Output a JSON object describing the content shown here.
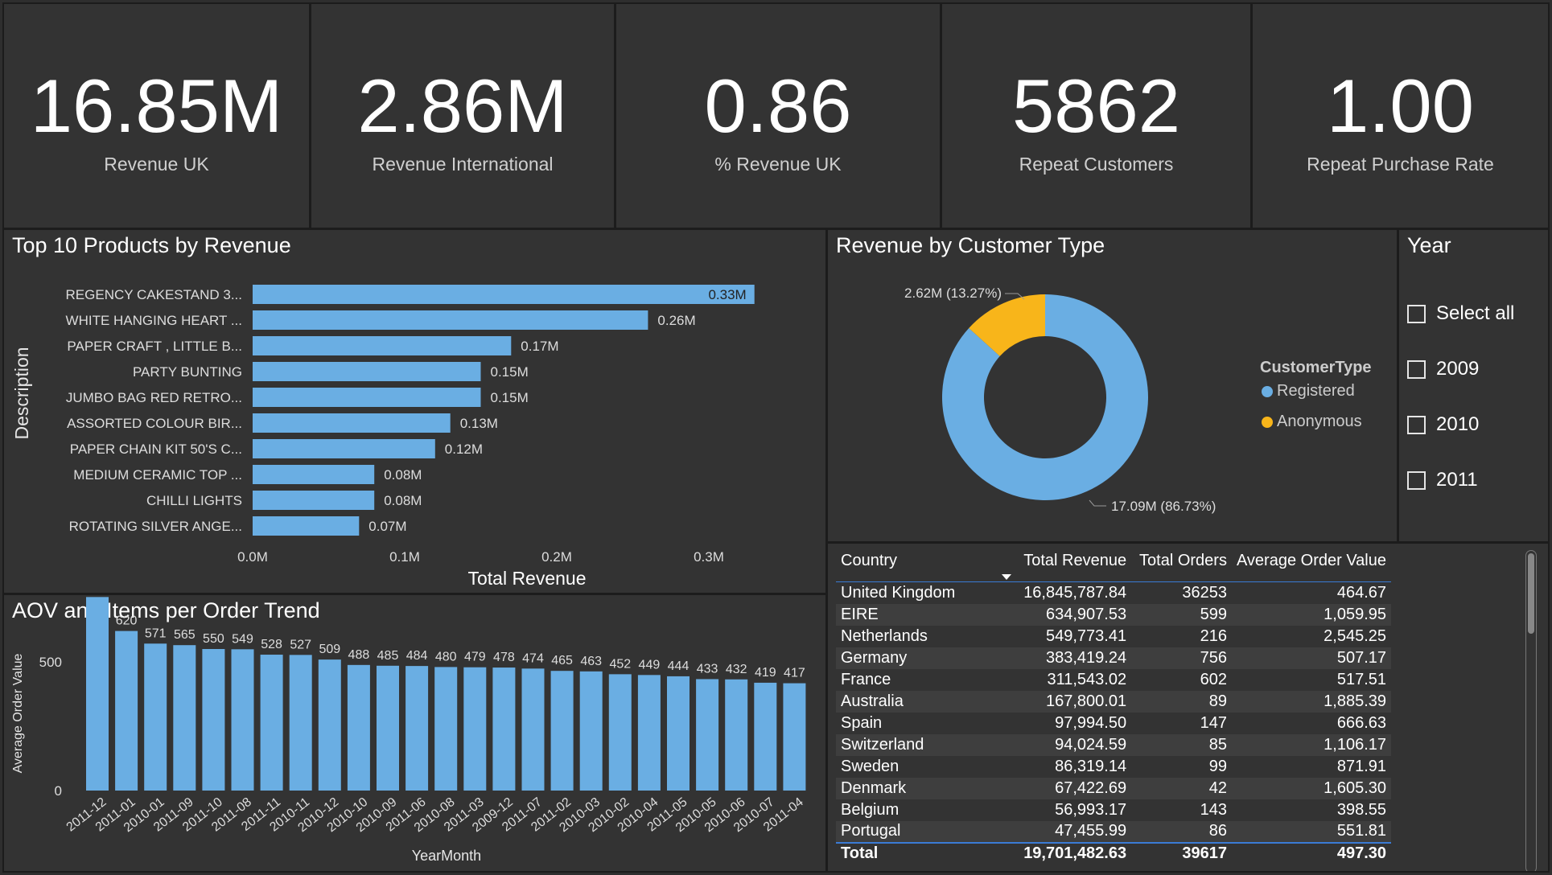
{
  "kpis": [
    {
      "value": "16.85M",
      "label": "Revenue UK"
    },
    {
      "value": "2.86M",
      "label": "Revenue International"
    },
    {
      "value": "0.86",
      "label": "% Revenue UK"
    },
    {
      "value": "5862",
      "label": "Repeat Customers"
    },
    {
      "value": "1.00",
      "label": "Repeat Purchase Rate"
    }
  ],
  "colors": {
    "bar": "#6aaee3",
    "registered": "#6aaee3",
    "anonymous": "#f8b51a",
    "accent": "#3a7bd5"
  },
  "products_chart": {
    "title": "Top 10 Products by Revenue",
    "ylabel": "Description",
    "xlabel": "Total Revenue",
    "ticks": [
      {
        "value": 0.0,
        "label": "0.0M"
      },
      {
        "value": 0.1,
        "label": "0.1M"
      },
      {
        "value": 0.2,
        "label": "0.2M"
      },
      {
        "value": 0.3,
        "label": "0.3M"
      }
    ]
  },
  "customer_type": {
    "title": "Revenue by Customer Type",
    "legend_title": "CustomerType",
    "legend": [
      "Registered",
      "Anonymous"
    ]
  },
  "year_slicer": {
    "title": "Year",
    "items": [
      "Select all",
      "2009",
      "2010",
      "2011"
    ]
  },
  "aov_chart": {
    "title": "AOV and Items per Order Trend",
    "ylabel": "Average Order Value",
    "xlabel": "YearMonth",
    "yticks": [
      0,
      500
    ]
  },
  "country_table": {
    "headers": [
      "Country",
      "Total Revenue",
      "Total Orders",
      "Average Order Value"
    ],
    "rows": [
      [
        "United Kingdom",
        "16,845,787.84",
        "36253",
        "464.67"
      ],
      [
        "EIRE",
        "634,907.53",
        "599",
        "1,059.95"
      ],
      [
        "Netherlands",
        "549,773.41",
        "216",
        "2,545.25"
      ],
      [
        "Germany",
        "383,419.24",
        "756",
        "507.17"
      ],
      [
        "France",
        "311,543.02",
        "602",
        "517.51"
      ],
      [
        "Australia",
        "167,800.01",
        "89",
        "1,885.39"
      ],
      [
        "Spain",
        "97,994.50",
        "147",
        "666.63"
      ],
      [
        "Switzerland",
        "94,024.59",
        "85",
        "1,106.17"
      ],
      [
        "Sweden",
        "86,319.14",
        "99",
        "871.91"
      ],
      [
        "Denmark",
        "67,422.69",
        "42",
        "1,605.30"
      ],
      [
        "Belgium",
        "56,993.17",
        "143",
        "398.55"
      ],
      [
        "Portugal",
        "47,455.99",
        "86",
        "551.81"
      ]
    ],
    "total": [
      "Total",
      "19,701,482.63",
      "39617",
      "497.30"
    ]
  },
  "chart_data": [
    {
      "type": "bar",
      "orientation": "horizontal",
      "title": "Top 10 Products by Revenue",
      "xlabel": "Total Revenue",
      "ylabel": "Description",
      "xlim": [
        0,
        0.35
      ],
      "categories": [
        "REGENCY CAKESTAND 3...",
        "WHITE HANGING HEART ...",
        "PAPER CRAFT , LITTLE B...",
        "PARTY BUNTING",
        "JUMBO BAG RED RETRO...",
        "ASSORTED COLOUR BIR...",
        "PAPER CHAIN KIT 50'S C...",
        "MEDIUM CERAMIC TOP ...",
        "CHILLI LIGHTS",
        "ROTATING SILVER ANGE..."
      ],
      "values": [
        0.33,
        0.26,
        0.17,
        0.15,
        0.15,
        0.13,
        0.12,
        0.08,
        0.08,
        0.07
      ],
      "labels": [
        "0.33M",
        "0.26M",
        "0.17M",
        "0.15M",
        "0.15M",
        "0.13M",
        "0.12M",
        "0.08M",
        "0.08M",
        "0.07M"
      ]
    },
    {
      "type": "pie",
      "title": "Revenue by Customer Type",
      "categories": [
        "Registered",
        "Anonymous"
      ],
      "values": [
        86.73,
        13.27
      ],
      "labels": [
        "17.09M (86.73%)",
        "2.62M (13.27%)"
      ]
    },
    {
      "type": "bar",
      "title": "AOV and Items per Order Trend",
      "xlabel": "YearMonth",
      "ylabel": "Average Order Value",
      "ylim": [
        0,
        800
      ],
      "categories": [
        "2011-12",
        "2011-01",
        "2010-01",
        "2011-09",
        "2011-10",
        "2011-08",
        "2011-11",
        "2010-11",
        "2010-12",
        "2010-10",
        "2010-09",
        "2011-06",
        "2010-08",
        "2011-03",
        "2009-12",
        "2011-07",
        "2011-02",
        "2010-03",
        "2010-02",
        "2010-04",
        "2011-05",
        "2010-05",
        "2010-06",
        "2010-07",
        "2011-04"
      ],
      "values": [
        752,
        620,
        571,
        565,
        550,
        549,
        528,
        527,
        509,
        488,
        485,
        484,
        480,
        479,
        478,
        474,
        465,
        463,
        452,
        449,
        444,
        433,
        432,
        419,
        417
      ]
    }
  ]
}
